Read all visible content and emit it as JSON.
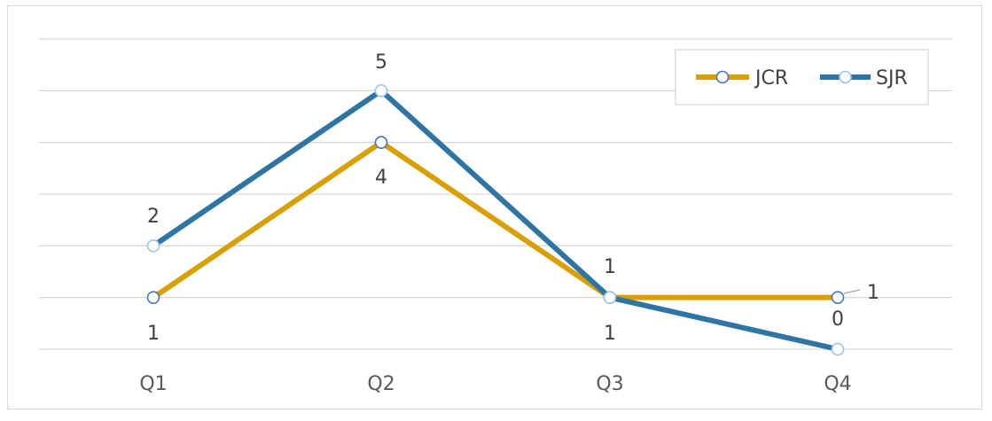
{
  "chart_data": {
    "type": "line",
    "categories": [
      "Q1",
      "Q2",
      "Q3",
      "Q4"
    ],
    "series": [
      {
        "name": "JCR",
        "values": [
          1,
          4,
          1,
          1
        ],
        "color": "#D9A004",
        "marker_color": "#4472C4"
      },
      {
        "name": "SJR",
        "values": [
          2,
          5,
          1,
          0
        ],
        "color": "#2E75A6",
        "marker_color": "#9DC3E6"
      }
    ],
    "ylim": [
      0,
      6
    ],
    "grid": true,
    "legend": "top-right",
    "data_labels": [
      {
        "series": "JCR",
        "index": 0,
        "text": "1"
      },
      {
        "series": "JCR",
        "index": 1,
        "text": "4"
      },
      {
        "series": "JCR",
        "index": 2,
        "text": "1"
      },
      {
        "series": "JCR",
        "index": 3,
        "text": "1"
      },
      {
        "series": "SJR",
        "index": 0,
        "text": "2"
      },
      {
        "series": "SJR",
        "index": 1,
        "text": "5"
      },
      {
        "series": "SJR",
        "index": 2,
        "text": "1"
      },
      {
        "series": "SJR",
        "index": 3,
        "text": "0"
      }
    ]
  }
}
